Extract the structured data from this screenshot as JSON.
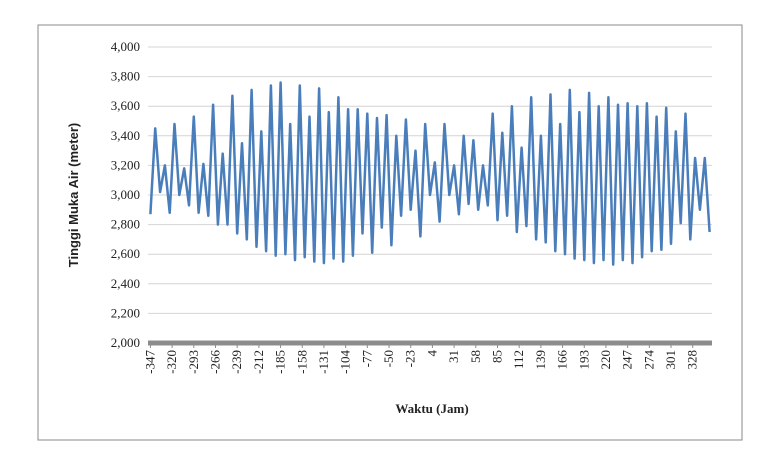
{
  "chart_data": {
    "type": "line",
    "x_label": "Waktu (Jam)",
    "y_label": "Tinggi Muka Air (meter)",
    "x": [
      -347,
      -341,
      -335,
      -329,
      -323,
      -317,
      -311,
      -305,
      -299,
      -293,
      -287,
      -281,
      -275,
      -269,
      -263,
      -257,
      -251,
      -245,
      -239,
      -233,
      -227,
      -221,
      -215,
      -209,
      -203,
      -197,
      -191,
      -185,
      -179,
      -173,
      -167,
      -161,
      -155,
      -149,
      -143,
      -137,
      -131,
      -125,
      -119,
      -113,
      -107,
      -101,
      -95,
      -89,
      -83,
      -77,
      -71,
      -65,
      -59,
      -53,
      -47,
      -41,
      -35,
      -29,
      -23,
      -17,
      -11,
      -5,
      1,
      7,
      13,
      19,
      25,
      31,
      37,
      43,
      49,
      55,
      61,
      67,
      73,
      79,
      85,
      91,
      97,
      103,
      109,
      115,
      121,
      127,
      133,
      139,
      145,
      151,
      157,
      163,
      169,
      175,
      181,
      187,
      193,
      199,
      205,
      211,
      217,
      223,
      229,
      235,
      241,
      247,
      253,
      259,
      265,
      271,
      277,
      283,
      289,
      295,
      301,
      307,
      313,
      319,
      325,
      331,
      337,
      343,
      349
    ],
    "series": [
      {
        "name": "Tinggi Muka Air",
        "color": "#4a7ebb",
        "values": [
          2870,
          3450,
          3020,
          3200,
          2880,
          3480,
          3000,
          3180,
          2930,
          3530,
          2880,
          3210,
          2860,
          3610,
          2800,
          3280,
          2800,
          3670,
          2740,
          3350,
          2700,
          3710,
          2650,
          3430,
          2620,
          3740,
          2590,
          3760,
          2600,
          3480,
          2560,
          3740,
          2580,
          3530,
          2550,
          3720,
          2540,
          3560,
          2570,
          3660,
          2550,
          3580,
          2590,
          3580,
          2740,
          3550,
          2610,
          3520,
          2780,
          3540,
          2660,
          3400,
          2860,
          3510,
          2900,
          3300,
          2720,
          3480,
          3000,
          3220,
          2820,
          3480,
          3000,
          3200,
          2870,
          3400,
          2940,
          3370,
          2900,
          3200,
          2930,
          3550,
          2830,
          3420,
          2860,
          3600,
          2750,
          3320,
          2790,
          3660,
          2700,
          3400,
          2680,
          3680,
          2620,
          3480,
          2600,
          3710,
          2570,
          3560,
          2560,
          3690,
          2540,
          3600,
          2560,
          3660,
          2530,
          3610,
          2560,
          3620,
          2540,
          3600,
          2580,
          3620,
          2620,
          3530,
          2630,
          3590,
          2670,
          3430,
          2810,
          3550,
          2700,
          3250,
          2900,
          3250,
          2750
        ]
      }
    ],
    "xlim": [
      -350,
      352
    ],
    "xticks": [
      -347,
      -320,
      -293,
      -266,
      -239,
      -212,
      -185,
      -158,
      -131,
      -104,
      -77,
      -50,
      -23,
      4,
      31,
      58,
      85,
      112,
      139,
      166,
      193,
      220,
      247,
      274,
      301,
      328
    ],
    "ylim": [
      2000,
      4000
    ],
    "yticks": [
      {
        "value": 2000,
        "label": "2,000"
      },
      {
        "value": 2200,
        "label": "2,200"
      },
      {
        "value": 2400,
        "label": "2,400"
      },
      {
        "value": 2600,
        "label": "2,600"
      },
      {
        "value": 2800,
        "label": "2,800"
      },
      {
        "value": 3000,
        "label": "3,000"
      },
      {
        "value": 3200,
        "label": "3,200"
      },
      {
        "value": 3400,
        "label": "3,400"
      },
      {
        "value": 3600,
        "label": "3,600"
      },
      {
        "value": 3800,
        "label": "3,800"
      },
      {
        "value": 4000,
        "label": "4,000"
      }
    ],
    "grid": true
  }
}
